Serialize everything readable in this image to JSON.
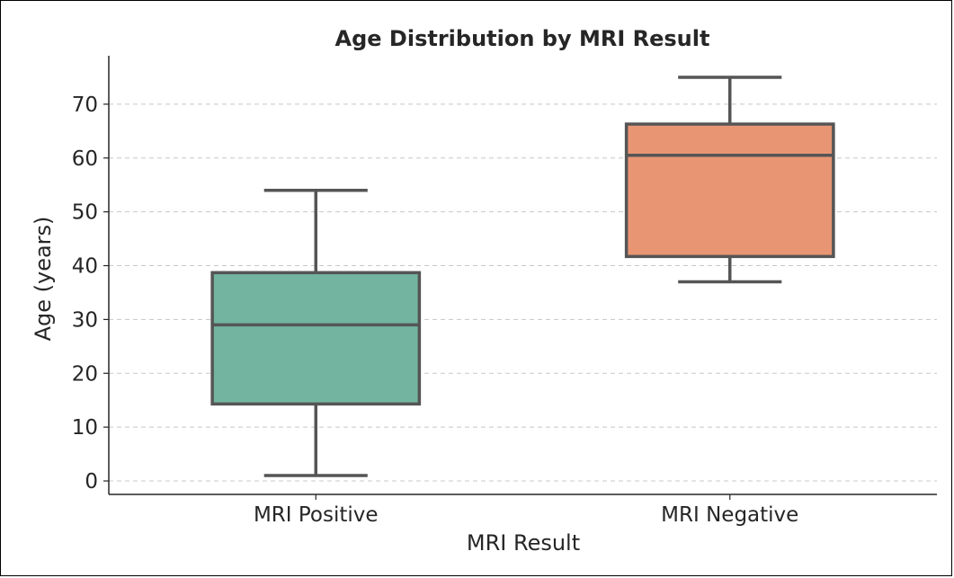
{
  "chart_data": {
    "type": "box",
    "title": "Age Distribution by MRI Result",
    "xlabel": "MRI Result",
    "ylabel": "Age (years)",
    "categories": [
      "MRI Positive",
      "MRI Negative"
    ],
    "boxes": [
      {
        "category": "MRI Positive",
        "whisker_low": 1,
        "q1": 14.3,
        "median": 29,
        "q3": 38.7,
        "whisker_high": 54,
        "color": "#72b4a0"
      },
      {
        "category": "MRI Negative",
        "whisker_low": 37,
        "q1": 41.7,
        "median": 60.5,
        "q3": 66.3,
        "whisker_high": 75,
        "color": "#e89574"
      }
    ],
    "yticks": [
      0,
      10,
      20,
      30,
      40,
      50,
      60,
      70
    ],
    "ylim": [
      -2.5,
      79
    ],
    "grid": "y-dashed",
    "legend": "none"
  }
}
